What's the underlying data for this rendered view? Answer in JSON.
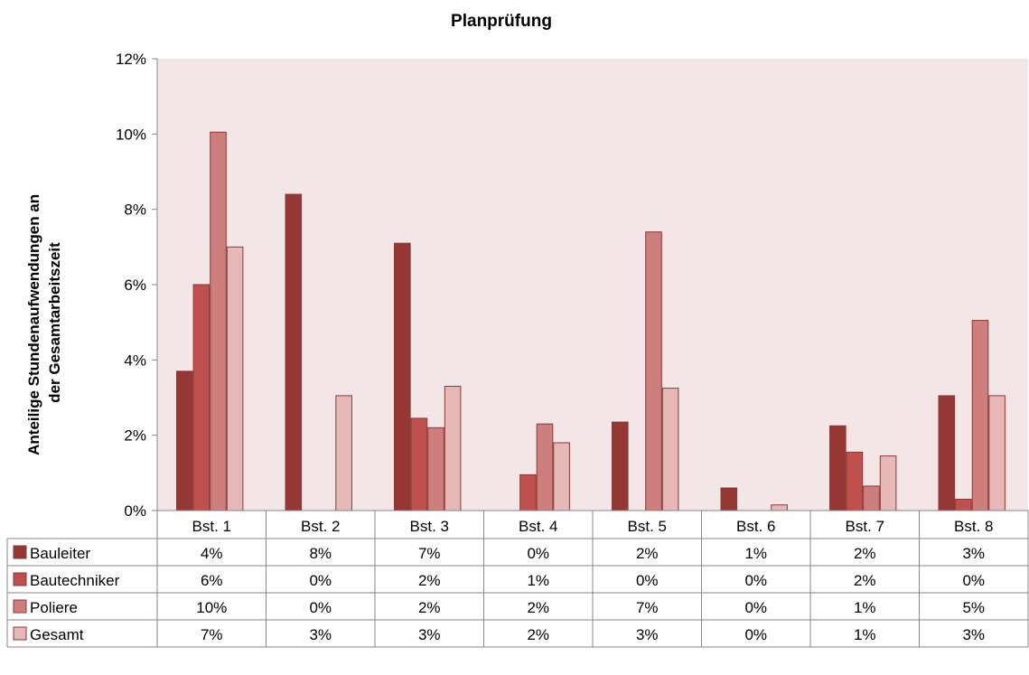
{
  "chart_data": {
    "type": "bar",
    "title": "Planprüfung",
    "ylabel": "Anteilige Stundenaufwendungen an der Gesamtarbeitszeit",
    "ylabel_lines": [
      "Anteilige Stundenaufwendungen an",
      "der Gesamtarbeitszeit"
    ],
    "xlabel": "",
    "categories": [
      "Bst. 1",
      "Bst. 2",
      "Bst. 3",
      "Bst. 4",
      "Bst. 5",
      "Bst. 6",
      "Bst. 7",
      "Bst. 8"
    ],
    "ylim": [
      0,
      12
    ],
    "yticks": [
      0,
      2,
      4,
      6,
      8,
      10,
      12
    ],
    "ytick_labels": [
      "0%",
      "2%",
      "4%",
      "6%",
      "8%",
      "10%",
      "12%"
    ],
    "grid": false,
    "legend": "data-table-left",
    "plot_background": "#f2e6e6",
    "series": [
      {
        "name": "Bauleiter",
        "color": "#953735",
        "values": [
          3.7,
          8.4,
          7.1,
          0.0,
          2.35,
          0.6,
          2.25,
          3.05
        ],
        "table_labels": [
          "4%",
          "8%",
          "7%",
          "0%",
          "2%",
          "1%",
          "2%",
          "3%"
        ]
      },
      {
        "name": "Bautechniker",
        "color": "#c0504d",
        "values": [
          6.0,
          0.0,
          2.45,
          0.95,
          0.0,
          0.0,
          1.55,
          0.3
        ],
        "table_labels": [
          "6%",
          "0%",
          "2%",
          "1%",
          "0%",
          "0%",
          "2%",
          "0%"
        ]
      },
      {
        "name": "Poliere",
        "color": "#cd7f7e",
        "values": [
          10.05,
          0.0,
          2.2,
          2.3,
          7.4,
          0.0,
          0.65,
          5.05
        ],
        "table_labels": [
          "10%",
          "0%",
          "2%",
          "2%",
          "7%",
          "0%",
          "1%",
          "5%"
        ]
      },
      {
        "name": "Gesamt",
        "color": "#e6b9b8",
        "values": [
          7.0,
          3.05,
          3.3,
          1.8,
          3.25,
          0.15,
          1.45,
          3.05
        ],
        "table_labels": [
          "7%",
          "3%",
          "3%",
          "2%",
          "3%",
          "0%",
          "1%",
          "3%"
        ]
      }
    ]
  }
}
